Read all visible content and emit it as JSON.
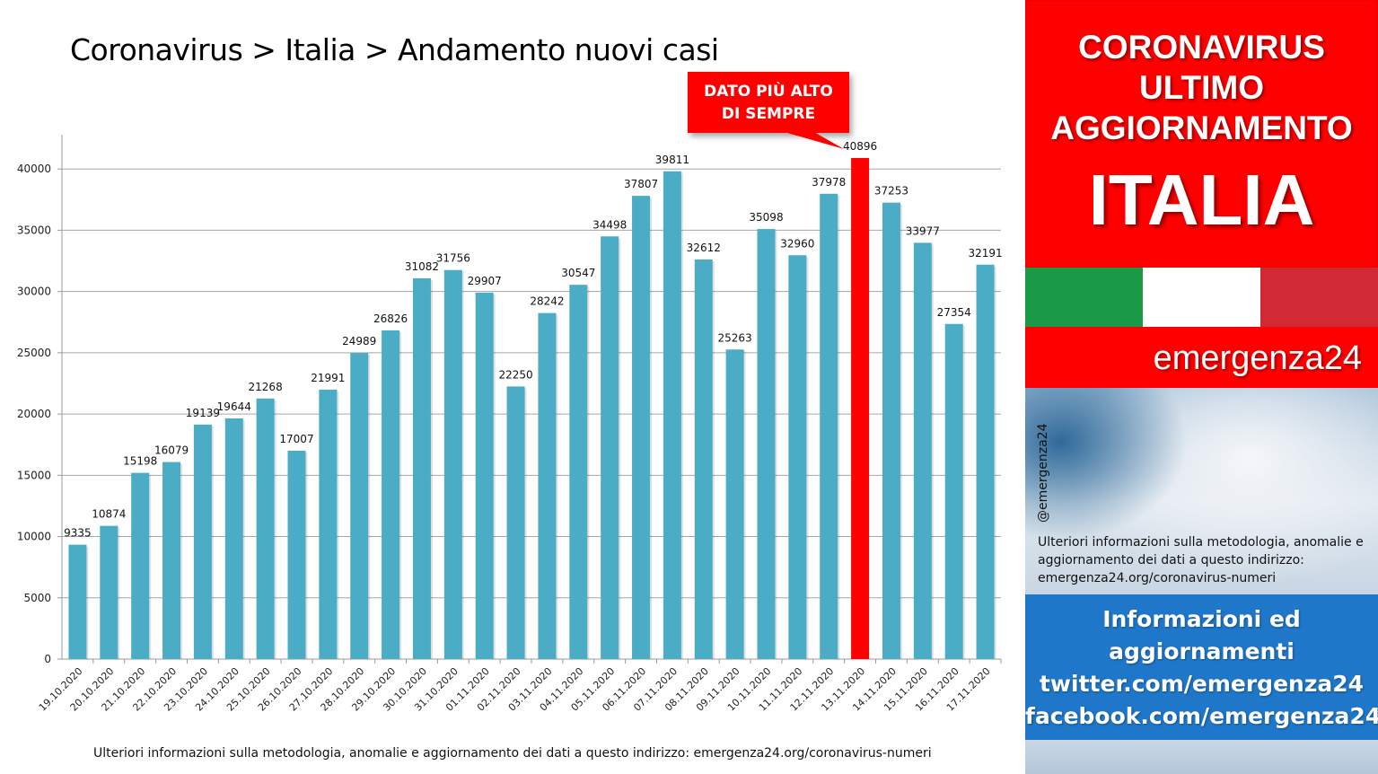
{
  "title": "Coronavirus > Italia > Andamento nuovi casi",
  "callout": {
    "line1": "DATO PIÙ ALTO",
    "line2": "DI SEMPRE"
  },
  "footer_note": "Ulteriori informazioni sulla metodologia, anomalie e aggiornamento dei dati a questo indirizzo: emergenza24.org/coronavirus-numeri",
  "panel": {
    "heading_lines": [
      "CORONAVIRUS",
      "ULTIMO",
      "AGGIORNAMENTO"
    ],
    "country": "ITALIA",
    "brand": "emergenza24",
    "handle": "@emergenza24",
    "photo_note": "Ulteriori informazioni sulla metodologia, anomalie e aggiornamento dei dati a questo indirizzo: emergenza24.org/coronavirus-numeri",
    "info_lines": [
      "Informazioni ed",
      "aggiornamenti",
      "twitter.com/emergenza24",
      "facebook.com/emergenza24"
    ]
  },
  "colors": {
    "bar": "#4bacc6",
    "highlight_bar": "#ff0000",
    "panel_red": "#ff0000",
    "info_blue": "#1f77c9",
    "flag_green": "#1a9a46",
    "flag_red": "#d22a35"
  },
  "chart_data": {
    "type": "bar",
    "categories": [
      "19.10.2020",
      "20.10.2020",
      "21.10.2020",
      "22.10.2020",
      "23.10.2020",
      "24.10.2020",
      "25.10.2020",
      "26.10.2020",
      "27.10.2020",
      "28.10.2020",
      "29.10.2020",
      "30.10.2020",
      "31.10.2020",
      "01.11.2020",
      "02.11.2020",
      "03.11.2020",
      "04.11.2020",
      "05.11.2020",
      "06.11.2020",
      "07.11.2020",
      "08.11.2020",
      "09.11.2020",
      "10.11.2020",
      "11.11.2020",
      "12.11.2020",
      "13.11.2020",
      "14.11.2020",
      "15.11.2020",
      "16.11.2020",
      "17.11.2020"
    ],
    "values": [
      9335,
      10874,
      15198,
      16079,
      19139,
      19644,
      21268,
      17007,
      21991,
      24989,
      26826,
      31082,
      31756,
      29907,
      22250,
      28242,
      30547,
      34498,
      37807,
      39811,
      32612,
      25263,
      35098,
      32960,
      37978,
      40896,
      37253,
      33977,
      27354,
      32191
    ],
    "highlight_category": "13.11.2020",
    "yticks": [
      0,
      5000,
      10000,
      15000,
      20000,
      25000,
      30000,
      35000,
      40000
    ],
    "ylim": [
      0,
      42800
    ],
    "grid": true,
    "legend": "none",
    "title": "Coronavirus > Italia > Andamento nuovi casi",
    "xlabel": "",
    "ylabel": ""
  }
}
